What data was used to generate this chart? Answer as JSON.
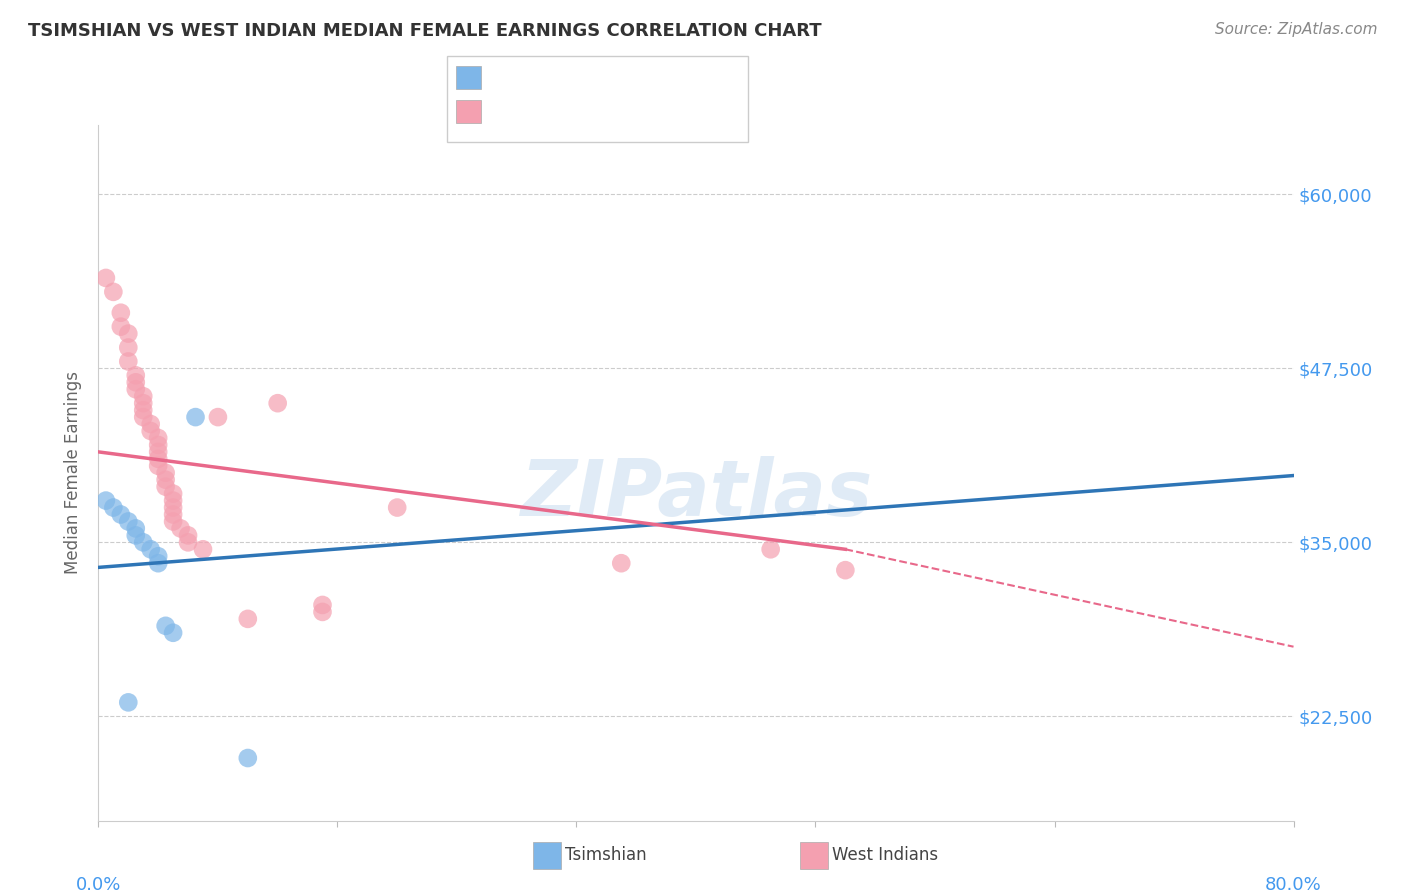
{
  "title": "TSIMSHIAN VS WEST INDIAN MEDIAN FEMALE EARNINGS CORRELATION CHART",
  "source": "Source: ZipAtlas.com",
  "ylabel": "Median Female Earnings",
  "y_ticks": [
    22500,
    35000,
    47500,
    60000
  ],
  "y_tick_labels": [
    "$22,500",
    "$35,000",
    "$47,500",
    "$60,000"
  ],
  "xlim": [
    0.0,
    0.8
  ],
  "ylim": [
    15000,
    65000
  ],
  "watermark": "ZIPatlas",
  "tsimshian_color": "#7EB6E8",
  "west_indian_color": "#F4A0B0",
  "tsimshian_line_color": "#2E75B6",
  "west_indian_line_color": "#E8688A",
  "tsimshian_line": [
    [
      0.0,
      33200
    ],
    [
      0.8,
      39800
    ]
  ],
  "west_indian_line_solid": [
    [
      0.0,
      41500
    ],
    [
      0.5,
      34500
    ]
  ],
  "west_indian_line_dashed": [
    [
      0.5,
      34500
    ],
    [
      0.8,
      27500
    ]
  ],
  "tsimshian_points": [
    [
      0.005,
      38000
    ],
    [
      0.01,
      37500
    ],
    [
      0.015,
      37000
    ],
    [
      0.02,
      36500
    ],
    [
      0.025,
      36000
    ],
    [
      0.025,
      35500
    ],
    [
      0.03,
      35000
    ],
    [
      0.035,
      34500
    ],
    [
      0.04,
      34000
    ],
    [
      0.04,
      33500
    ],
    [
      0.045,
      29000
    ],
    [
      0.05,
      28500
    ],
    [
      0.065,
      44000
    ],
    [
      0.02,
      23500
    ],
    [
      0.1,
      19500
    ]
  ],
  "west_indian_points": [
    [
      0.005,
      54000
    ],
    [
      0.01,
      53000
    ],
    [
      0.015,
      51500
    ],
    [
      0.015,
      50500
    ],
    [
      0.02,
      50000
    ],
    [
      0.02,
      49000
    ],
    [
      0.02,
      48000
    ],
    [
      0.025,
      47000
    ],
    [
      0.025,
      46500
    ],
    [
      0.025,
      46000
    ],
    [
      0.03,
      45500
    ],
    [
      0.03,
      45000
    ],
    [
      0.03,
      44500
    ],
    [
      0.03,
      44000
    ],
    [
      0.035,
      43500
    ],
    [
      0.035,
      43000
    ],
    [
      0.04,
      42500
    ],
    [
      0.04,
      42000
    ],
    [
      0.04,
      41500
    ],
    [
      0.04,
      41000
    ],
    [
      0.04,
      40500
    ],
    [
      0.045,
      40000
    ],
    [
      0.045,
      39500
    ],
    [
      0.045,
      39000
    ],
    [
      0.05,
      38500
    ],
    [
      0.05,
      38000
    ],
    [
      0.05,
      37500
    ],
    [
      0.05,
      37000
    ],
    [
      0.05,
      36500
    ],
    [
      0.055,
      36000
    ],
    [
      0.06,
      35500
    ],
    [
      0.06,
      35000
    ],
    [
      0.07,
      34500
    ],
    [
      0.08,
      44000
    ],
    [
      0.12,
      45000
    ],
    [
      0.2,
      37500
    ],
    [
      0.35,
      33500
    ],
    [
      0.45,
      34500
    ],
    [
      0.5,
      33000
    ],
    [
      0.1,
      29500
    ],
    [
      0.15,
      30500
    ],
    [
      0.15,
      30000
    ]
  ]
}
